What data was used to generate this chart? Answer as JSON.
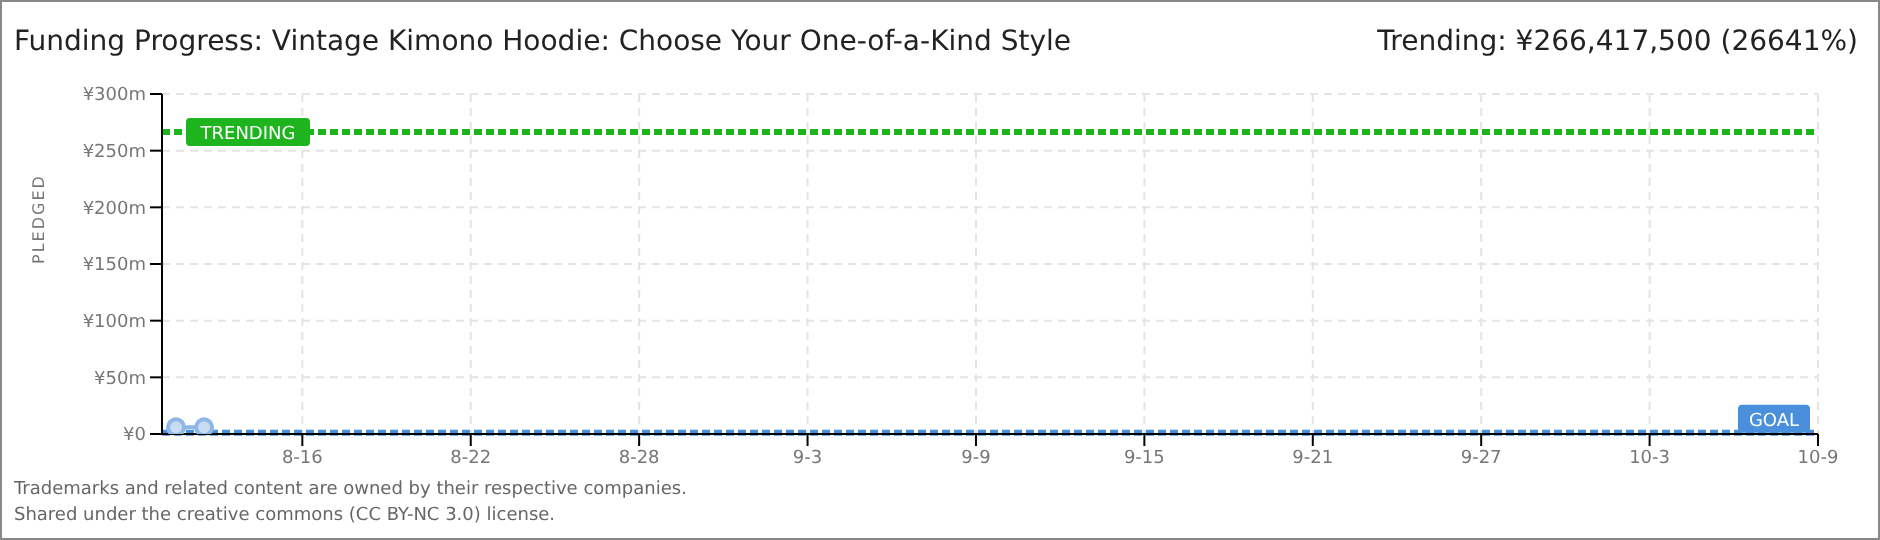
{
  "chart_data": {
    "type": "line",
    "title": "Funding Progress: Vintage Kimono Hoodie: Choose Your One-of-a-Kind Style",
    "subtitle": "Trending:  ¥266,417,500 (26641%)",
    "ylabel": "PLEDGED",
    "x": [
      "--08-11T12:00",
      "--08-12T12:00"
    ],
    "series": [
      {
        "color": "#8fb8e8",
        "values": [
          6,
          6
        ]
      }
    ],
    "xlim": [
      "--08-11",
      "--10-09"
    ],
    "xticks": [
      {
        "value": "--08-16",
        "label": "8-16"
      },
      {
        "value": "--08-22",
        "label": "8-22"
      },
      {
        "value": "--08-28",
        "label": "8-28"
      },
      {
        "value": "--09-03",
        "label": "9-3"
      },
      {
        "value": "--09-09",
        "label": "9-9"
      },
      {
        "value": "--09-15",
        "label": "9-15"
      },
      {
        "value": "--09-21",
        "label": "9-21"
      },
      {
        "value": "--09-27",
        "label": "9-27"
      },
      {
        "value": "--10-03",
        "label": "10-3"
      },
      {
        "value": "--10-09",
        "label": "10-9"
      }
    ],
    "ylim": [
      0,
      300
    ],
    "yticks": [
      {
        "value": 0,
        "label": "¥0"
      },
      {
        "value": 50,
        "label": "¥50m"
      },
      {
        "value": 100,
        "label": "¥100m"
      },
      {
        "value": 150,
        "label": "¥150m"
      },
      {
        "value": 200,
        "label": "¥200m"
      },
      {
        "value": 250,
        "label": "¥250m"
      },
      {
        "value": 300,
        "label": "¥300m"
      }
    ],
    "ref_lines": [
      {
        "axis": "y",
        "value": 266.4175,
        "label": "TRENDING",
        "color": "#1eb41e",
        "line_style": "dashed"
      },
      {
        "axis": "y",
        "value": 1,
        "label": "GOAL",
        "color": "#4a8fdc",
        "line_style": "dashed"
      }
    ],
    "grid": true,
    "marker": "circle",
    "legend": false,
    "annotations": [
      "Trademarks and related content are owned by their respective companies.",
      "Shared under the creative commons (CC BY-NC 3.0) license."
    ]
  }
}
